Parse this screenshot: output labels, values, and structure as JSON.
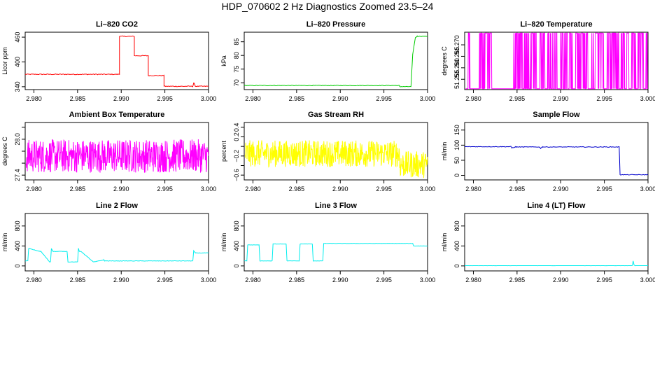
{
  "figure": {
    "title": "HDP_070602  2 Hz Diagnostics Zoomed 23.5–24"
  },
  "chart_data": [
    {
      "type": "line",
      "title": "Li–820 CO2",
      "ylabel": "Licor ppm",
      "xlim": [
        2.979,
        3.0
      ],
      "ylim": [
        333,
        472
      ],
      "xticks": [
        2.98,
        2.985,
        2.99,
        2.995,
        3.0
      ],
      "xtick_labels": [
        "2.980",
        "2.985",
        "2.990",
        "2.995",
        "3.000"
      ],
      "yticks": [
        340,
        400,
        460
      ],
      "ytick_labels": [
        "340",
        "400",
        "460"
      ],
      "color": "#ff0000",
      "noise": 1,
      "series": [
        {
          "x": [
            2.979,
            2.9898,
            2.9898,
            2.9915,
            2.9915,
            2.9931,
            2.9931,
            2.9949,
            2.9949,
            2.9982,
            2.9983,
            2.9985,
            3.0
          ],
          "y": [
            370,
            370,
            462,
            462,
            415,
            415,
            367,
            367,
            341,
            341,
            349,
            341,
            341
          ]
        }
      ]
    },
    {
      "type": "line",
      "title": "Li–820 Pressure",
      "ylabel": "kPa",
      "xlim": [
        2.979,
        3.0
      ],
      "ylim": [
        67.5,
        88.5
      ],
      "xticks": [
        2.98,
        2.985,
        2.99,
        2.995,
        3.0
      ],
      "xtick_labels": [
        "2.980",
        "2.985",
        "2.990",
        "2.995",
        "3.000"
      ],
      "yticks": [
        70,
        75,
        80,
        85
      ],
      "ytick_labels": [
        "70",
        "75",
        "80",
        "85"
      ],
      "color": "#00cc00",
      "noise": 0.1,
      "series": [
        {
          "x": [
            2.979,
            2.9968,
            2.9968,
            2.9981,
            2.9983,
            2.9986,
            2.9988,
            3.0
          ],
          "y": [
            69.0,
            69.0,
            68.6,
            68.6,
            80.5,
            86.5,
            87.0,
            87.0
          ]
        }
      ]
    },
    {
      "type": "line",
      "title": "Li–820 Temperature",
      "ylabel": "degrees C",
      "xlim": [
        2.979,
        3.0
      ],
      "ylim": [
        51.2505,
        51.2755
      ],
      "xticks": [
        2.98,
        2.985,
        2.99,
        2.995,
        3.0
      ],
      "xtick_labels": [
        "2.980",
        "2.985",
        "2.990",
        "2.995",
        "3.000"
      ],
      "yticks": [
        51.255,
        51.26,
        51.265,
        51.27
      ],
      "ytick_labels": [
        "51.255",
        "51.260",
        "51.265",
        "51.270"
      ],
      "color": "#ff00ff",
      "mode": "binary",
      "low": 51.2509,
      "high": 51.2751,
      "pulse_ranges": [
        [
          2.9794,
          2.9798
        ],
        [
          2.9807,
          2.9821
        ],
        [
          2.9846,
          2.9872
        ],
        [
          2.9876,
          2.9882
        ],
        [
          2.9884,
          2.9897
        ],
        [
          2.99,
          2.9908
        ],
        [
          2.991,
          2.9915
        ],
        [
          2.9917,
          2.9932
        ],
        [
          2.9935,
          2.9949
        ],
        [
          2.9953,
          2.9967
        ],
        [
          2.9969,
          2.9978
        ],
        [
          2.9981,
          2.9986
        ],
        [
          2.9988,
          2.9995
        ],
        [
          2.9997,
          2.9999
        ]
      ]
    },
    {
      "type": "line",
      "title": "Ambient Box Temperature",
      "ylabel": "degrees C",
      "xlim": [
        2.979,
        3.0
      ],
      "ylim": [
        27.32,
        28.28
      ],
      "xticks": [
        2.98,
        2.985,
        2.99,
        2.995,
        3.0
      ],
      "xtick_labels": [
        "2.980",
        "2.985",
        "2.990",
        "2.995",
        "3.000"
      ],
      "yticks": [
        27.4,
        27.6,
        27.8,
        28.0,
        28.2
      ],
      "ytick_labels": [
        "27.4",
        "",
        "",
        "28.0",
        ""
      ],
      "color": "#ff00ff",
      "mode": "noise",
      "base": 27.72,
      "amp": 0.28
    },
    {
      "type": "line",
      "title": "Gas Stream RH",
      "ylabel": "percent",
      "xlim": [
        2.979,
        3.0
      ],
      "ylim": [
        -0.7,
        0.5
      ],
      "xticks": [
        2.98,
        2.985,
        2.99,
        2.995,
        3.0
      ],
      "xtick_labels": [
        "2.980",
        "2.985",
        "2.990",
        "2.995",
        "3.000"
      ],
      "yticks": [
        -0.6,
        -0.4,
        -0.2,
        0.0,
        0.2,
        0.4
      ],
      "ytick_labels": [
        "−0.6",
        "",
        "−0.2",
        "",
        "0.2",
        "0.4"
      ],
      "color": "#ffff00",
      "mode": "noise",
      "base": -0.15,
      "amp": 0.28,
      "shift_after": 2.9968,
      "shift_base": -0.38
    },
    {
      "type": "line",
      "title": "Sample Flow",
      "ylabel": "ml/min",
      "xlim": [
        2.979,
        3.0
      ],
      "ylim": [
        -15,
        175
      ],
      "xticks": [
        2.98,
        2.985,
        2.99,
        2.995,
        3.0
      ],
      "xtick_labels": [
        "2.980",
        "2.985",
        "2.990",
        "2.995",
        "3.000"
      ],
      "yticks": [
        0,
        50,
        100,
        150
      ],
      "ytick_labels": [
        "0",
        "50",
        "100",
        "150"
      ],
      "color": "#0000cc",
      "noise": 1,
      "series": [
        {
          "x": [
            2.979,
            2.9843,
            2.9844,
            2.9848,
            2.9849,
            2.9875,
            2.9877,
            2.9879,
            2.9967,
            2.9968,
            3.0
          ],
          "y": [
            95,
            95,
            91,
            94,
            94,
            94,
            90,
            94,
            94,
            2,
            2
          ]
        }
      ]
    },
    {
      "type": "line",
      "title": "Line 2 Flow",
      "ylabel": "ml/min",
      "xlim": [
        2.979,
        3.0
      ],
      "ylim": [
        -100,
        1050
      ],
      "xticks": [
        2.98,
        2.985,
        2.99,
        2.995,
        3.0
      ],
      "xtick_labels": [
        "2.980",
        "2.985",
        "2.990",
        "2.995",
        "3.000"
      ],
      "yticks": [
        0,
        400,
        800
      ],
      "ytick_labels": [
        "0",
        "400",
        "800"
      ],
      "color": "#00eeee",
      "noise": 4,
      "series": [
        {
          "x": [
            2.979,
            2.9793,
            2.9794,
            2.9807,
            2.9808,
            2.9818,
            2.9819,
            2.982,
            2.9822,
            2.9838,
            2.9839,
            2.985,
            2.9851,
            2.9852,
            2.9854,
            2.9868,
            2.9869,
            2.988,
            2.9881,
            2.9881,
            2.9982,
            2.9983,
            2.9985,
            3.0
          ],
          "y": [
            100,
            100,
            350,
            290,
            290,
            80,
            80,
            350,
            290,
            290,
            80,
            80,
            350,
            290,
            290,
            80,
            80,
            120,
            100,
            100,
            100,
            300,
            260,
            260
          ]
        }
      ]
    },
    {
      "type": "line",
      "title": "Line 3 Flow",
      "ylabel": "ml/min",
      "xlim": [
        2.979,
        3.0
      ],
      "ylim": [
        -100,
        1050
      ],
      "xticks": [
        2.98,
        2.985,
        2.99,
        2.995,
        3.0
      ],
      "xtick_labels": [
        "2.980",
        "2.985",
        "2.990",
        "2.995",
        "3.000"
      ],
      "yticks": [
        0,
        400,
        800
      ],
      "ytick_labels": [
        "0",
        "400",
        "800"
      ],
      "color": "#00eeee",
      "noise": 3,
      "series": [
        {
          "x": [
            2.979,
            2.9793,
            2.9794,
            2.9807,
            2.9808,
            2.9822,
            2.9823,
            2.9838,
            2.9839,
            2.9853,
            2.9854,
            2.9868,
            2.9869,
            2.988,
            2.9881,
            2.9983,
            2.9984,
            3.0
          ],
          "y": [
            100,
            100,
            420,
            420,
            100,
            100,
            440,
            440,
            100,
            100,
            440,
            440,
            100,
            100,
            450,
            450,
            400,
            400
          ]
        }
      ]
    },
    {
      "type": "line",
      "title": "Line 4 (LT) Flow",
      "ylabel": "ml/min",
      "xlim": [
        2.979,
        3.0
      ],
      "ylim": [
        -100,
        1050
      ],
      "xticks": [
        2.98,
        2.985,
        2.99,
        2.995,
        3.0
      ],
      "xtick_labels": [
        "2.980",
        "2.985",
        "2.990",
        "2.995",
        "3.000"
      ],
      "yticks": [
        0,
        400,
        800
      ],
      "ytick_labels": [
        "0",
        "400",
        "800"
      ],
      "color": "#00eeee",
      "noise": 1,
      "series": [
        {
          "x": [
            2.979,
            2.9982,
            2.9983,
            2.9984,
            2.9985,
            3.0
          ],
          "y": [
            5,
            5,
            100,
            20,
            5,
            5
          ]
        }
      ]
    }
  ]
}
